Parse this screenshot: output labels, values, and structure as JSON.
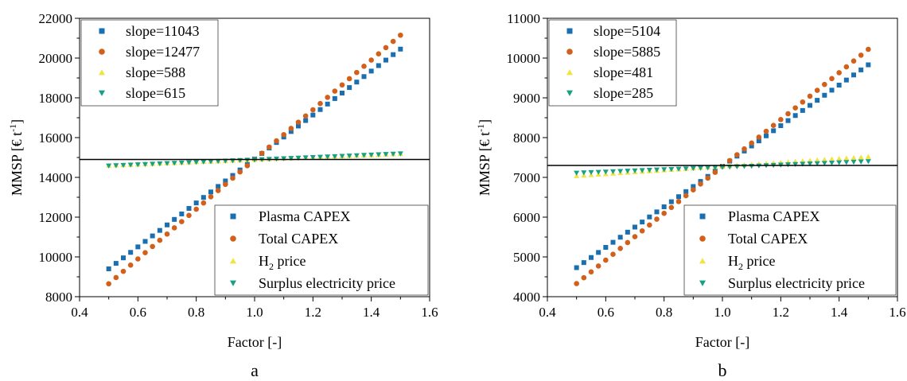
{
  "colors": {
    "plasma_capex": "#1a6fb0",
    "total_capex": "#d2601a",
    "h2_price": "#f0e442",
    "surplus_electricity": "#16a085"
  },
  "chart_data": [
    {
      "panel_label": "a",
      "type": "scatter",
      "xlabel": "Factor [-]",
      "ylabel": "MMSP [€ t",
      "ylabel_sup": "-1",
      "ylabel_close": "]",
      "xlim": [
        0.4,
        1.6
      ],
      "ylim": [
        8000,
        22000
      ],
      "xticks": [
        "0.4",
        "0.6",
        "0.8",
        "1.0",
        "1.2",
        "1.4",
        "1.6"
      ],
      "yticks": [
        "8000",
        "10000",
        "12000",
        "14000",
        "16000",
        "18000",
        "20000",
        "22000"
      ],
      "reference_y": 14900,
      "x": {
        "start": 0.5,
        "stop": 1.5,
        "count": 41
      },
      "series": [
        {
          "name": "Plasma CAPEX",
          "marker": "square",
          "color_key": "plasma_capex",
          "start": 9400,
          "end": 20450,
          "slope_label": "slope=11043"
        },
        {
          "name": "Total CAPEX",
          "marker": "circle",
          "color_key": "total_capex",
          "start": 8650,
          "end": 21150,
          "slope_label": "slope=12477"
        },
        {
          "name": "H",
          "name_sub": "2",
          "name_tail": " price",
          "marker": "triangle-up",
          "color_key": "h2_price",
          "start": 14600,
          "end": 15190,
          "slope_label": "slope=588"
        },
        {
          "name": "Surplus electricity price",
          "marker": "triangle-down",
          "color_key": "surplus_electricity",
          "start": 14580,
          "end": 15190,
          "slope_label": "slope=615"
        }
      ]
    },
    {
      "panel_label": "b",
      "type": "scatter",
      "xlabel": "Factor [-]",
      "ylabel": "MMSP [€ t",
      "ylabel_sup": "-1",
      "ylabel_close": "]",
      "xlim": [
        0.4,
        1.6
      ],
      "ylim": [
        4000,
        11000
      ],
      "xticks": [
        "0.4",
        "0.6",
        "0.8",
        "1.0",
        "1.2",
        "1.4",
        "1.6"
      ],
      "yticks": [
        "4000",
        "5000",
        "6000",
        "7000",
        "8000",
        "9000",
        "10000",
        "11000"
      ],
      "reference_y": 7300,
      "x": {
        "start": 0.5,
        "stop": 1.5,
        "count": 41
      },
      "series": [
        {
          "name": "Plasma CAPEX",
          "marker": "square",
          "color_key": "plasma_capex",
          "start": 4730,
          "end": 9830,
          "slope_label": "slope=5104"
        },
        {
          "name": "Total CAPEX",
          "marker": "circle",
          "color_key": "total_capex",
          "start": 4330,
          "end": 10220,
          "slope_label": "slope=5885"
        },
        {
          "name": "H",
          "name_sub": "2",
          "name_tail": " price",
          "marker": "triangle-up",
          "color_key": "h2_price",
          "start": 7040,
          "end": 7520,
          "slope_label": "slope=481"
        },
        {
          "name": "Surplus electricity price",
          "marker": "triangle-down",
          "color_key": "surplus_electricity",
          "start": 7110,
          "end": 7400,
          "slope_label": "slope=285"
        }
      ]
    }
  ]
}
